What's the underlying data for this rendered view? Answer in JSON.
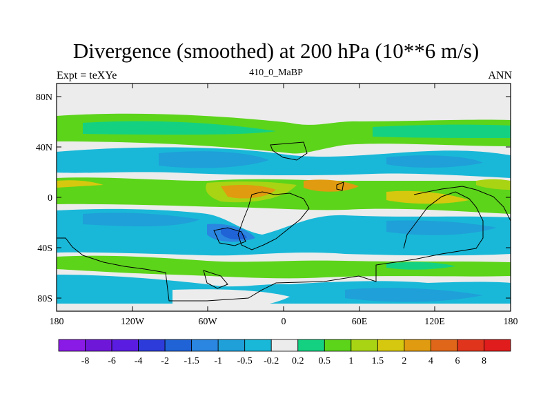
{
  "title": "Divergence (smoothed) at 200 hPa (10**6 m/s)",
  "subtitle_left": "Expt = teXYe",
  "subtitle_center": "410_0_MaBP",
  "subtitle_right": "ANN",
  "axes": {
    "x_ticks": [
      "180",
      "120W",
      "60W",
      "0",
      "60E",
      "120E",
      "180"
    ],
    "y_ticks": [
      "80N",
      "40N",
      "0",
      "40S",
      "80S"
    ]
  },
  "colorbar": {
    "colors": [
      "#8a1ae6",
      "#6f17d9",
      "#5a1ce0",
      "#2c3bd9",
      "#1f63d6",
      "#2a86e0",
      "#1fa0d8",
      "#19b8d8",
      "#ececec",
      "#14d182",
      "#5cd41a",
      "#a8d414",
      "#d6c80e",
      "#e09b10",
      "#e0661a",
      "#e0351c",
      "#e01c1c"
    ],
    "labels": [
      "-8",
      "-6",
      "-4",
      "-2",
      "-1.5",
      "-1",
      "-0.5",
      "-0.2",
      "0.2",
      "0.5",
      "1",
      "1.5",
      "2",
      "4",
      "6",
      "8"
    ]
  }
}
